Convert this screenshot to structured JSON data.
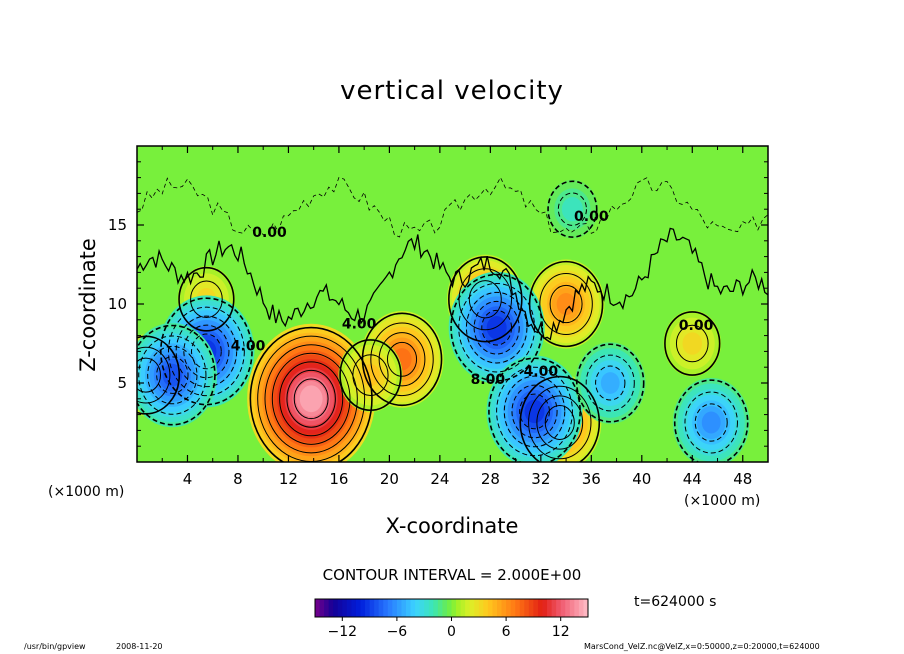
{
  "chart_data": {
    "type": "heatmap",
    "title": "vertical velocity",
    "xlabel": "X-coordinate",
    "ylabel": "Z-coordinate",
    "x_unit_left": "(×1000 m)",
    "x_unit_right": "(×1000 m)",
    "xlim": [
      0,
      50
    ],
    "ylim": [
      0,
      20
    ],
    "x_ticks": [
      4,
      8,
      12,
      16,
      20,
      24,
      28,
      32,
      36,
      40,
      44,
      48
    ],
    "y_ticks": [
      5,
      10,
      15
    ],
    "contour_interval_text": "CONTOUR INTERVAL = 2.000E+00",
    "contour_labels": [
      {
        "text": "4.00",
        "x": 17.6,
        "z": 8.7
      },
      {
        "text": "4.00",
        "x": 8.8,
        "z": 7.3
      },
      {
        "text": "4.00",
        "x": 32.0,
        "z": 5.7
      },
      {
        "text": "8.00",
        "x": 27.8,
        "z": 5.2
      },
      {
        "text": "0.00",
        "x": 10.5,
        "z": 14.5
      },
      {
        "text": "0.00",
        "x": 36.0,
        "z": 15.5
      },
      {
        "text": "0.00",
        "x": 44.3,
        "z": 8.6
      }
    ],
    "features": [
      {
        "kind": "updraft",
        "x": 13.8,
        "z": 4.0,
        "peak": 15
      },
      {
        "kind": "updraft",
        "x": 21.0,
        "z": 6.5,
        "peak": 8
      },
      {
        "kind": "updraft",
        "x": 18.5,
        "z": 5.5,
        "peak": 5
      },
      {
        "kind": "updraft",
        "x": 34.0,
        "z": 10.0,
        "peak": 7
      },
      {
        "kind": "updraft",
        "x": 33.5,
        "z": 2.5,
        "peak": 8
      },
      {
        "kind": "updraft",
        "x": 0.7,
        "z": 5.5,
        "peak": 6
      },
      {
        "kind": "updraft",
        "x": 27.6,
        "z": 10.3,
        "peak": 7
      },
      {
        "kind": "updraft",
        "x": 44.0,
        "z": 7.5,
        "peak": 4
      },
      {
        "kind": "updraft",
        "x": 5.5,
        "z": 10.3,
        "peak": 4
      },
      {
        "kind": "downdraft",
        "x": 5.5,
        "z": 7.0,
        "peak": -10
      },
      {
        "kind": "downdraft",
        "x": 2.8,
        "z": 5.5,
        "peak": -9
      },
      {
        "kind": "downdraft",
        "x": 28.5,
        "z": 8.5,
        "peak": -10
      },
      {
        "kind": "downdraft",
        "x": 31.5,
        "z": 3.2,
        "peak": -10
      },
      {
        "kind": "downdraft",
        "x": 37.5,
        "z": 5.0,
        "peak": -6
      },
      {
        "kind": "downdraft",
        "x": 45.5,
        "z": 2.5,
        "peak": -7
      },
      {
        "kind": "downdraft",
        "x": 34.5,
        "z": 16.0,
        "peak": -3
      }
    ],
    "colorbar": {
      "min": -15,
      "max": 15,
      "tick_values": [
        -12,
        -6,
        0,
        6,
        12
      ],
      "tick_labels": [
        "−12",
        "−6",
        "0",
        "6",
        "12"
      ]
    }
  },
  "time_label": "t=624000  s",
  "footer": {
    "program": "/usr/bin/gpview",
    "date": "2008-11-20",
    "source": "MarsCond_VelZ.nc@VelZ,x=0:50000,z=0:20000,t=624000"
  }
}
